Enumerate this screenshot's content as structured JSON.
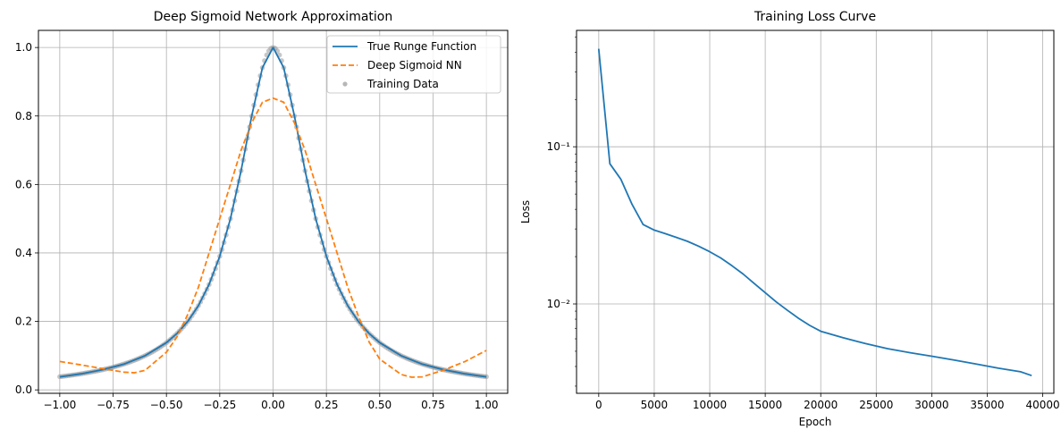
{
  "chart_data": [
    {
      "type": "line",
      "title": "Deep Sigmoid Network Approximation",
      "xlabel": "",
      "ylabel": "",
      "xlim": [
        -1.1,
        1.1
      ],
      "ylim": [
        -0.01,
        1.05
      ],
      "grid": true,
      "legend_position": "top-right",
      "x_ticks": [
        -1.0,
        -0.75,
        -0.5,
        -0.25,
        0.0,
        0.25,
        0.5,
        0.75,
        1.0
      ],
      "x_tick_labels": [
        "−1.00",
        "−0.75",
        "−0.50",
        "−0.25",
        "0.00",
        "0.25",
        "0.50",
        "0.75",
        "1.00"
      ],
      "y_ticks": [
        0.0,
        0.2,
        0.4,
        0.6,
        0.8,
        1.0
      ],
      "y_tick_labels": [
        "0.0",
        "0.2",
        "0.4",
        "0.6",
        "0.8",
        "1.0"
      ],
      "series": [
        {
          "name": "True Runge Function",
          "style": "solid",
          "color": "#1f77b4",
          "x": [
            -1.0,
            -0.9,
            -0.8,
            -0.7,
            -0.6,
            -0.5,
            -0.45,
            -0.4,
            -0.35,
            -0.3,
            -0.25,
            -0.2,
            -0.15,
            -0.1,
            -0.05,
            0.0,
            0.05,
            0.1,
            0.15,
            0.2,
            0.25,
            0.3,
            0.35,
            0.4,
            0.45,
            0.5,
            0.6,
            0.7,
            0.8,
            0.9,
            1.0
          ],
          "y": [
            0.038,
            0.047,
            0.059,
            0.075,
            0.1,
            0.138,
            0.165,
            0.2,
            0.246,
            0.308,
            0.39,
            0.5,
            0.64,
            0.8,
            0.941,
            1.0,
            0.941,
            0.8,
            0.64,
            0.5,
            0.39,
            0.308,
            0.246,
            0.2,
            0.165,
            0.138,
            0.1,
            0.075,
            0.059,
            0.047,
            0.038
          ]
        },
        {
          "name": "Deep Sigmoid NN",
          "style": "dashed",
          "color": "#ff7f0e",
          "x": [
            -1.0,
            -0.9,
            -0.8,
            -0.7,
            -0.65,
            -0.6,
            -0.5,
            -0.45,
            -0.4,
            -0.35,
            -0.3,
            -0.25,
            -0.2,
            -0.15,
            -0.1,
            -0.05,
            0.0,
            0.05,
            0.1,
            0.15,
            0.2,
            0.25,
            0.3,
            0.35,
            0.4,
            0.45,
            0.5,
            0.6,
            0.65,
            0.7,
            0.8,
            0.9,
            1.0
          ],
          "y": [
            0.083,
            0.073,
            0.062,
            0.052,
            0.05,
            0.057,
            0.11,
            0.155,
            0.22,
            0.3,
            0.4,
            0.5,
            0.6,
            0.7,
            0.78,
            0.84,
            0.852,
            0.84,
            0.78,
            0.7,
            0.6,
            0.5,
            0.4,
            0.3,
            0.215,
            0.14,
            0.09,
            0.045,
            0.037,
            0.038,
            0.058,
            0.083,
            0.115
          ]
        }
      ],
      "scatter": {
        "name": "Training Data",
        "color": "#999999",
        "x_range": [
          -1.0,
          1.0
        ],
        "count": 201,
        "function": "1/(1+25x^2)"
      }
    },
    {
      "type": "line",
      "title": "Training Loss Curve",
      "xlabel": "Epoch",
      "ylabel": "Loss",
      "xlim": [
        -2000,
        41000
      ],
      "ylim": [
        0.0027,
        0.55
      ],
      "yscale": "log",
      "grid": true,
      "x_ticks": [
        0,
        5000,
        10000,
        15000,
        20000,
        25000,
        30000,
        35000,
        40000
      ],
      "x_tick_labels": [
        "0",
        "5000",
        "10000",
        "15000",
        "20000",
        "25000",
        "30000",
        "35000",
        "40000"
      ],
      "y_ticks": [
        0.01,
        0.1
      ],
      "y_tick_labels": [
        "10⁻²",
        "10⁻¹"
      ],
      "series": [
        {
          "name": "",
          "color": "#1f77b4",
          "x": [
            0,
            1000,
            2000,
            3000,
            4000,
            5000,
            6000,
            7000,
            8000,
            9000,
            10000,
            11000,
            12000,
            13000,
            14000,
            15000,
            16000,
            17000,
            18000,
            19000,
            20000,
            22000,
            24000,
            26000,
            28000,
            30000,
            32000,
            34000,
            36000,
            38000,
            39000
          ],
          "y": [
            0.42,
            0.078,
            0.062,
            0.043,
            0.032,
            0.0295,
            0.028,
            0.0265,
            0.025,
            0.0233,
            0.0215,
            0.0196,
            0.0175,
            0.0155,
            0.0135,
            0.0118,
            0.0103,
            0.0091,
            0.0081,
            0.0073,
            0.0067,
            0.0061,
            0.0056,
            0.0052,
            0.0049,
            0.00465,
            0.0044,
            0.00415,
            0.0039,
            0.0037,
            0.0035
          ]
        }
      ]
    }
  ]
}
